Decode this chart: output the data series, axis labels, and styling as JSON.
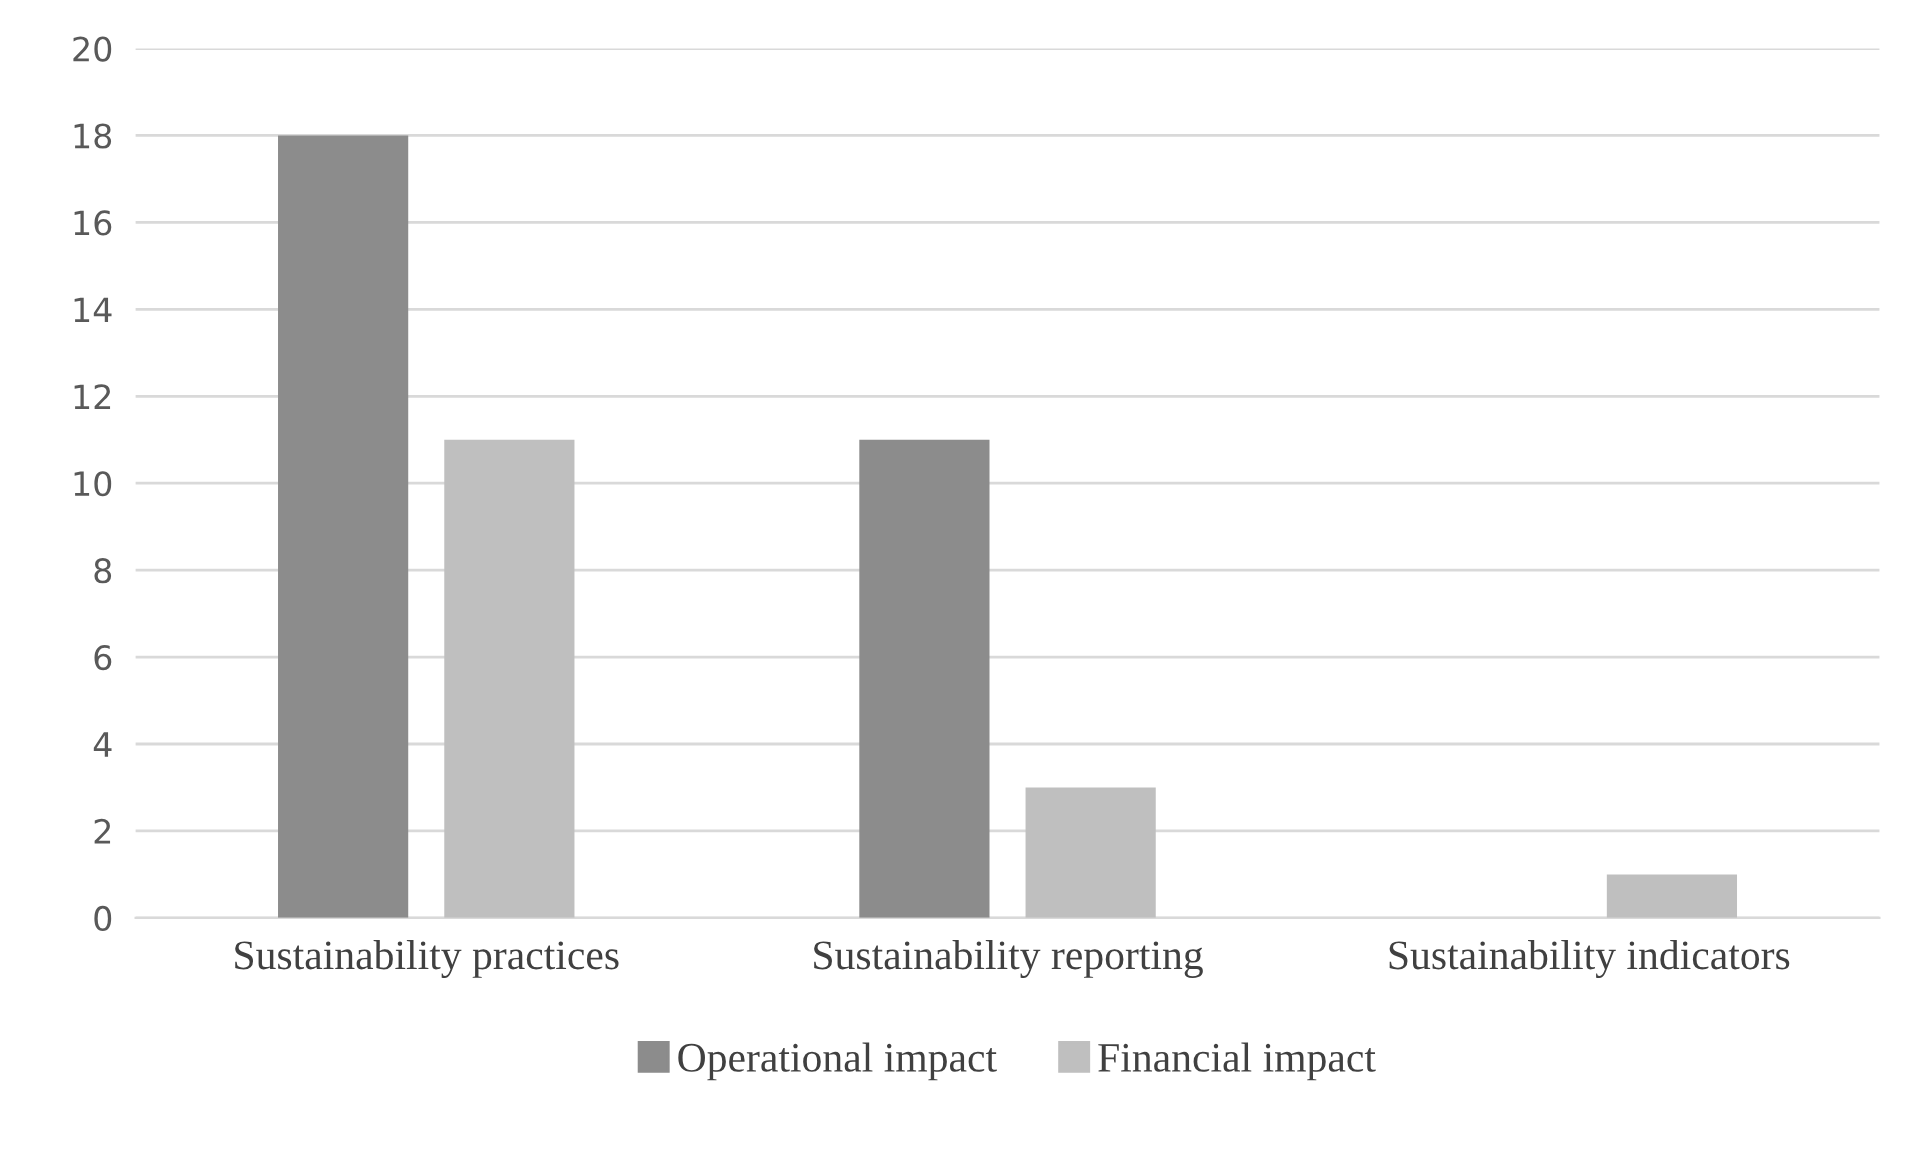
{
  "chart_data": {
    "type": "bar",
    "categories": [
      "Sustainability practices",
      "Sustainability reporting",
      "Sustainability indicators"
    ],
    "series": [
      {
        "name": "Operational impact",
        "color": "#8c8c8c",
        "values": [
          18,
          11,
          0
        ]
      },
      {
        "name": "Financial impact",
        "color": "#bfbfbf",
        "values": [
          11,
          3,
          1
        ]
      }
    ],
    "ylim": [
      0,
      20
    ],
    "yticks": [
      0,
      2,
      4,
      6,
      8,
      10,
      12,
      14,
      16,
      18,
      20
    ],
    "grid": "y",
    "legend": "bottom"
  }
}
